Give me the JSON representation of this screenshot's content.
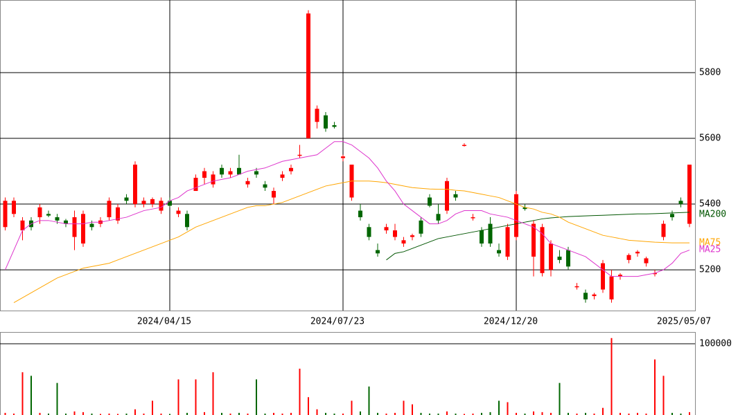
{
  "chart_data": {
    "type": "candlestick",
    "categories": [
      null,
      null,
      null,
      null,
      null,
      null,
      null,
      null,
      null,
      null,
      null,
      null,
      null,
      null,
      null,
      null,
      null,
      null,
      null,
      "2024/04/15",
      null,
      null,
      null,
      null,
      null,
      null,
      null,
      null,
      null,
      null,
      null,
      null,
      null,
      null,
      null,
      null,
      null,
      null,
      null,
      "2024/07/23",
      null,
      null,
      null,
      null,
      null,
      null,
      null,
      null,
      null,
      null,
      null,
      null,
      null,
      null,
      null,
      null,
      null,
      null,
      null,
      "2024/12/20",
      null,
      null,
      null,
      null,
      null,
      null,
      null,
      null,
      null,
      null,
      null,
      null,
      null,
      null,
      null,
      null,
      null,
      null,
      null,
      "2025/05/07"
    ],
    "open": [
      5330,
      5370,
      5320,
      5350,
      5360,
      5370,
      5360,
      5350,
      5300,
      5280,
      5340,
      5340,
      5360,
      5350,
      5420,
      5400,
      5400,
      5400,
      5380,
      5410,
      5370,
      5370,
      5440,
      5480,
      5460,
      5510,
      5490,
      5510,
      5460,
      5500,
      5460,
      5420,
      5480,
      5500,
      5550,
      5600,
      5650,
      5670,
      5640,
      5540,
      5420,
      5380,
      5330,
      5260,
      5320,
      5300,
      5280,
      5300,
      5350,
      5420,
      5370,
      5380,
      5430,
      5580,
      5360,
      5320,
      5340,
      5260,
      5240,
      5300,
      5390,
      5240,
      5190,
      5200,
      5240,
      5260,
      5150,
      5130,
      5120,
      5140,
      5110,
      5180,
      5230,
      5250,
      5220,
      5190,
      5300,
      5370,
      5410,
      5340
    ],
    "high": [
      5420,
      5420,
      5360,
      5360,
      5400,
      5380,
      5370,
      5355,
      5380,
      5380,
      5350,
      5360,
      5420,
      5400,
      5430,
      5530,
      5420,
      5420,
      5420,
      5420,
      5390,
      5380,
      5490,
      5510,
      5500,
      5520,
      5510,
      5550,
      5480,
      5510,
      5470,
      5450,
      5500,
      5520,
      5580,
      5990,
      5700,
      5680,
      5650,
      5550,
      5520,
      5400,
      5340,
      5280,
      5340,
      5340,
      5300,
      5310,
      5360,
      5430,
      5400,
      5480,
      5440,
      5585,
      5370,
      5330,
      5360,
      5280,
      5340,
      5440,
      5400,
      5350,
      5340,
      5290,
      5260,
      5270,
      5160,
      5140,
      5130,
      5230,
      5200,
      5190,
      5250,
      5260,
      5240,
      5200,
      5350,
      5380,
      5420,
      5520
    ],
    "low": [
      5320,
      5360,
      5290,
      5320,
      5340,
      5360,
      5340,
      5330,
      5260,
      5270,
      5320,
      5330,
      5350,
      5340,
      5400,
      5390,
      5390,
      5390,
      5370,
      5390,
      5360,
      5320,
      5440,
      5460,
      5450,
      5480,
      5480,
      5490,
      5450,
      5480,
      5440,
      5400,
      5470,
      5490,
      5540,
      5600,
      5630,
      5620,
      5630,
      5530,
      5410,
      5350,
      5290,
      5240,
      5310,
      5290,
      5270,
      5290,
      5300,
      5390,
      5340,
      5370,
      5410,
      5575,
      5350,
      5270,
      5270,
      5240,
      5230,
      5290,
      5380,
      5180,
      5180,
      5180,
      5220,
      5200,
      5140,
      5100,
      5110,
      5130,
      5100,
      5170,
      5220,
      5240,
      5210,
      5180,
      5290,
      5350,
      5390,
      5330
    ],
    "close": [
      5410,
      5410,
      5350,
      5330,
      5390,
      5365,
      5350,
      5340,
      5360,
      5370,
      5330,
      5350,
      5410,
      5390,
      5410,
      5520,
      5410,
      5415,
      5410,
      5395,
      5380,
      5330,
      5480,
      5500,
      5490,
      5490,
      5500,
      5490,
      5470,
      5490,
      5450,
      5440,
      5490,
      5510,
      5550,
      5980,
      5690,
      5630,
      5635,
      5545,
      5520,
      5360,
      5300,
      5250,
      5330,
      5320,
      5290,
      5305,
      5310,
      5395,
      5350,
      5470,
      5420,
      5580,
      5360,
      5280,
      5280,
      5250,
      5330,
      5430,
      5385,
      5340,
      5330,
      5280,
      5230,
      5210,
      5150,
      5110,
      5125,
      5220,
      5180,
      5185,
      5245,
      5255,
      5235,
      5190,
      5340,
      5360,
      5400,
      5520
    ],
    "colors": {
      "up": "#ff0000",
      "down": "#006600"
    },
    "ylim": [
      5076,
      6021
    ],
    "yticks": [
      5200,
      5400,
      5600,
      5800
    ],
    "grid": true,
    "lines": [
      {
        "name": "MA200",
        "color": "#005500",
        "values": [
          null,
          null,
          null,
          null,
          null,
          null,
          null,
          null,
          null,
          null,
          null,
          null,
          null,
          null,
          null,
          null,
          null,
          null,
          null,
          null,
          null,
          null,
          null,
          null,
          null,
          null,
          null,
          null,
          null,
          null,
          null,
          null,
          null,
          null,
          null,
          null,
          null,
          null,
          null,
          null,
          null,
          null,
          null,
          null,
          5230,
          5250,
          5255,
          5265,
          5275,
          5285,
          5295,
          5300,
          5305,
          5310,
          5315,
          5320,
          5325,
          5330,
          5335,
          5340,
          5345,
          5350,
          5355,
          5358,
          5360,
          5362,
          5363,
          5364,
          5365,
          5366,
          5367,
          5368,
          5369,
          5370,
          5370,
          5371,
          5372,
          5373,
          5374,
          5375
        ]
      },
      {
        "name": "MA75",
        "color": "#ffa500",
        "values": [
          null,
          5100,
          5115,
          5130,
          5145,
          5160,
          5175,
          5185,
          5195,
          5205,
          5210,
          5215,
          5220,
          5230,
          5240,
          5250,
          5260,
          5270,
          5280,
          5290,
          5300,
          5315,
          5330,
          5340,
          5350,
          5360,
          5370,
          5380,
          5390,
          5395,
          5395,
          5400,
          5405,
          5415,
          5425,
          5435,
          5445,
          5455,
          5460,
          5465,
          5470,
          5470,
          5470,
          5468,
          5465,
          5460,
          5455,
          5450,
          5448,
          5446,
          5445,
          5445,
          5442,
          5440,
          5435,
          5430,
          5425,
          5420,
          5410,
          5400,
          5390,
          5385,
          5375,
          5370,
          5360,
          5345,
          5335,
          5325,
          5315,
          5305,
          5300,
          5295,
          5290,
          5288,
          5286,
          5284,
          5283,
          5282,
          5282,
          5282
        ]
      },
      {
        "name": "MA25",
        "color": "#dd33cc",
        "values": [
          5200,
          5260,
          5320,
          5340,
          5350,
          5350,
          5345,
          5340,
          5340,
          5340,
          5345,
          5345,
          5350,
          5355,
          5360,
          5370,
          5380,
          5385,
          5390,
          5410,
          5420,
          5440,
          5450,
          5460,
          5470,
          5475,
          5480,
          5490,
          5500,
          5505,
          5510,
          5520,
          5530,
          5535,
          5540,
          5545,
          5550,
          5570,
          5590,
          5590,
          5580,
          5560,
          5540,
          5510,
          5470,
          5440,
          5400,
          5380,
          5360,
          5340,
          5340,
          5350,
          5370,
          5380,
          5380,
          5380,
          5370,
          5365,
          5360,
          5350,
          5340,
          5330,
          5310,
          5280,
          5270,
          5260,
          5250,
          5240,
          5220,
          5200,
          5180,
          5180,
          5180,
          5180,
          5185,
          5190,
          5200,
          5220,
          5250,
          5260
        ]
      }
    ],
    "volume": {
      "values": [
        3000,
        2000,
        60000,
        55000,
        3000,
        2000,
        45000,
        2000,
        5000,
        4000,
        2000,
        1500,
        2000,
        1500,
        2000,
        8000,
        2000,
        20000,
        2000,
        1500,
        50000,
        3000,
        50000,
        4000,
        60000,
        3000,
        2000,
        3000,
        2000,
        50000,
        2000,
        3000,
        2000,
        3000,
        65000,
        25000,
        8000,
        3000,
        2000,
        2000,
        20000,
        5000,
        40000,
        3000,
        2000,
        3000,
        20000,
        15000,
        3000,
        2000,
        2000,
        5000,
        2000,
        1500,
        2000,
        3000,
        4000,
        20000,
        18000,
        3000,
        2000,
        5000,
        4000,
        3000,
        45000,
        3000,
        2000,
        3000,
        2000,
        10000,
        108000,
        3000,
        2000,
        3000,
        2000,
        78000,
        55000,
        3000,
        2000,
        4000
      ],
      "ylim": [
        0,
        116500
      ],
      "yticks": [
        100000
      ]
    }
  }
}
